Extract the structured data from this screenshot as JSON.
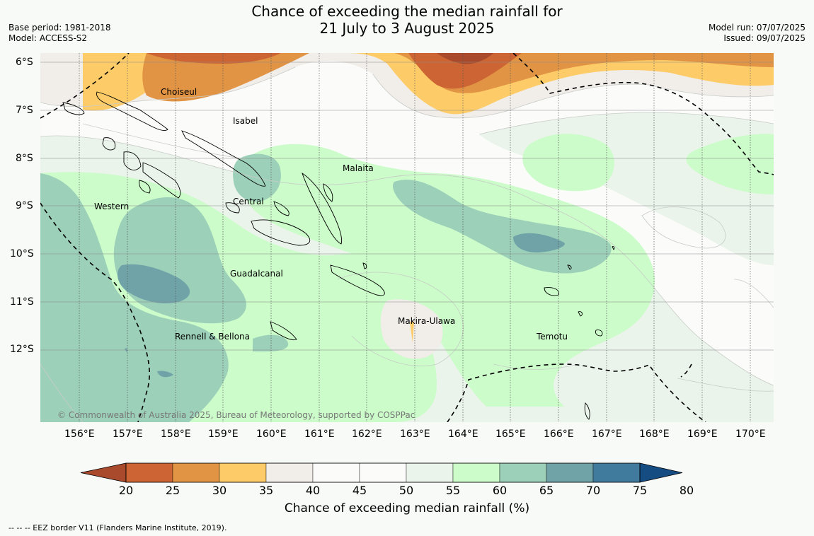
{
  "title": {
    "line1": "Chance of exceeding the median rainfall for",
    "line2": "21 July to 3 August 2025"
  },
  "meta_left": {
    "base_period": "Base period: 1981-2018",
    "model": "Model: ACCESS-S2"
  },
  "meta_right": {
    "model_run": "Model run: 07/07/2025",
    "issued": "Issued: 09/07/2025"
  },
  "map": {
    "lat_labels": [
      "6°S",
      "7°S",
      "8°S",
      "9°S",
      "10°S",
      "11°S",
      "12°S"
    ],
    "lon_labels": [
      "156°E",
      "157°E",
      "158°E",
      "159°E",
      "160°E",
      "161°E",
      "162°E",
      "163°E",
      "164°E",
      "165°E",
      "166°E",
      "167°E",
      "168°E",
      "169°E",
      "170°E"
    ],
    "region_labels": {
      "choiseul": "Choiseul",
      "isabel": "Isabel",
      "malaita": "Malaita",
      "western": "Western",
      "central": "Central",
      "guadalcanal": "Guadalcanal",
      "makira_ulawa": "Makira-Ulawa",
      "temotu": "Temotu",
      "rennell_bellona": "Rennell & Bellona"
    },
    "copyright": "© Commonwealth of Australia 2025, Bureau of Meteorology, supported by COSPPac"
  },
  "colorbar": {
    "ticks": [
      "20",
      "25",
      "30",
      "35",
      "40",
      "45",
      "50",
      "55",
      "60",
      "65",
      "70",
      "75",
      "80"
    ],
    "colors": [
      "#a84a2b",
      "#cc6533",
      "#e29445",
      "#fdcc68",
      "#f1ede9",
      "#fbfcfa",
      "#fbfcfa",
      "#eaf4ea",
      "#cbfcc9",
      "#9cd0b9",
      "#6fa3a8",
      "#407a9c",
      "#154c82"
    ],
    "title": "Chance of exceeding median rainfall (%)"
  },
  "footnote": "-- -- -- EEZ border V11 (Flanders Marine Institute, 2019)."
}
